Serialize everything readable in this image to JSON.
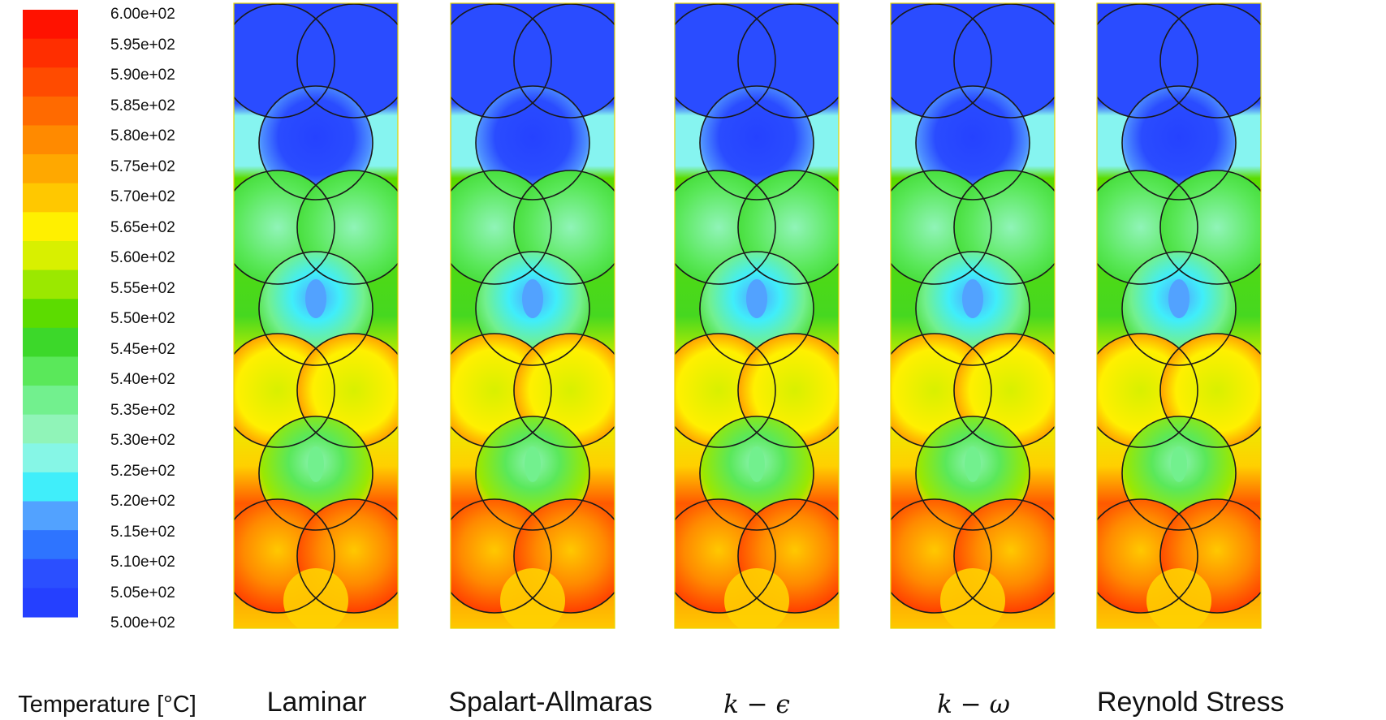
{
  "legend": {
    "title": "Temperature [°C]",
    "ticks": [
      "6.00e+02",
      "5.95e+02",
      "5.90e+02",
      "5.85e+02",
      "5.80e+02",
      "5.75e+02",
      "5.70e+02",
      "5.65e+02",
      "5.60e+02",
      "5.55e+02",
      "5.50e+02",
      "5.45e+02",
      "5.40e+02",
      "5.35e+02",
      "5.30e+02",
      "5.25e+02",
      "5.20e+02",
      "5.15e+02",
      "5.10e+02",
      "5.05e+02",
      "5.00e+02"
    ],
    "colors": [
      "#ff1200",
      "#ff2e00",
      "#ff4b00",
      "#ff6a00",
      "#ff8a00",
      "#ffa800",
      "#ffc800",
      "#fff000",
      "#d8f000",
      "#9be800",
      "#5cdc00",
      "#3cd82a",
      "#5ae85a",
      "#72f08e",
      "#90f4b8",
      "#86f6e6",
      "#40eefa",
      "#52a2ff",
      "#2e74ff",
      "#2b4fff",
      "#2540ff"
    ],
    "range": [
      500,
      600
    ]
  },
  "panels": [
    {
      "label": "Laminar"
    },
    {
      "label": "Spalart-Allmaras"
    },
    {
      "label": "k − ϵ"
    },
    {
      "label": "k − ω"
    },
    {
      "label": "Reynold Stress"
    }
  ]
}
